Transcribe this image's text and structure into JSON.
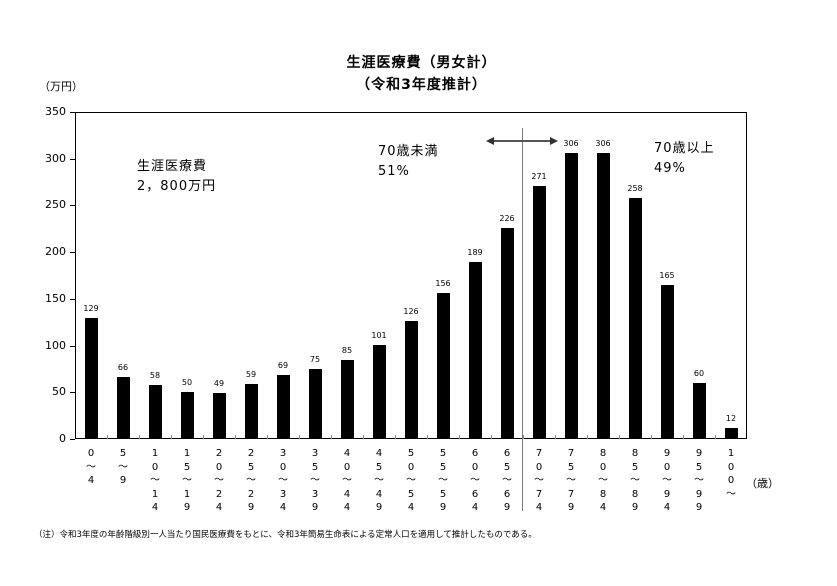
{
  "chart_data": {
    "type": "bar",
    "title": "生涯医療費（男女計）",
    "subtitle": "（令和3年度推計）",
    "ylabel": "（万円）",
    "xlabel": "（歳）",
    "ylim": [
      0,
      350
    ],
    "yticks": [
      0,
      50,
      100,
      150,
      200,
      250,
      300,
      350
    ],
    "grid": false,
    "legend": null,
    "categories": [
      "0～4",
      "5～9",
      "10～14",
      "15～19",
      "20～24",
      "25～29",
      "30～34",
      "35～39",
      "40～44",
      "45～49",
      "50～54",
      "55～59",
      "60～64",
      "65～69",
      "70～74",
      "75～79",
      "80～84",
      "85～89",
      "90～94",
      "95～99",
      "100～"
    ],
    "values": [
      129,
      66,
      58,
      50,
      49,
      59,
      69,
      75,
      85,
      101,
      126,
      156,
      189,
      226,
      271,
      306,
      306,
      258,
      165,
      60,
      12
    ],
    "category_labels_vertical": [
      "0\n～\n4",
      "5\n～\n9",
      "1\n0\n～\n1\n4",
      "1\n5\n～\n1\n9",
      "2\n0\n～\n2\n4",
      "2\n5\n～\n2\n9",
      "3\n0\n～\n3\n4",
      "3\n5\n～\n3\n9",
      "4\n0\n～\n4\n4",
      "4\n5\n～\n4\n9",
      "5\n0\n～\n5\n4",
      "5\n5\n～\n5\n9",
      "6\n0\n～\n6\n4",
      "6\n5\n～\n6\n9",
      "7\n0\n～\n7\n4",
      "7\n5\n～\n7\n9",
      "8\n0\n～\n8\n4",
      "8\n5\n～\n8\n9",
      "9\n0\n～\n9\n4",
      "9\n5\n～\n9\n9",
      "1\n0\n0\n～"
    ],
    "annotations": [
      {
        "text": "生涯医療費\n2，800万円"
      },
      {
        "text": "70歳未満\n51%"
      },
      {
        "text": "70歳以上\n49%"
      }
    ],
    "divider_between": [
      "65～69",
      "70～74"
    ],
    "colors": {
      "bar": "#000000",
      "divider": "#7a7a7a",
      "arrow": "#555555"
    }
  },
  "header": {
    "title": "生涯医療費（男女計）",
    "subtitle": "（令和3年度推計）"
  },
  "axis": {
    "y_unit": "（万円）",
    "x_unit": "（歳）"
  },
  "annotations": {
    "total": "生涯医療費\n2，800万円",
    "under70": "70歳未満\n51%",
    "over70": "70歳以上\n49%"
  },
  "footnote": "（注）令和3年度の年齢階級別一人当たり国民医療費をもとに、令和3年簡易生命表による定常人口を適用して推計したものである。"
}
